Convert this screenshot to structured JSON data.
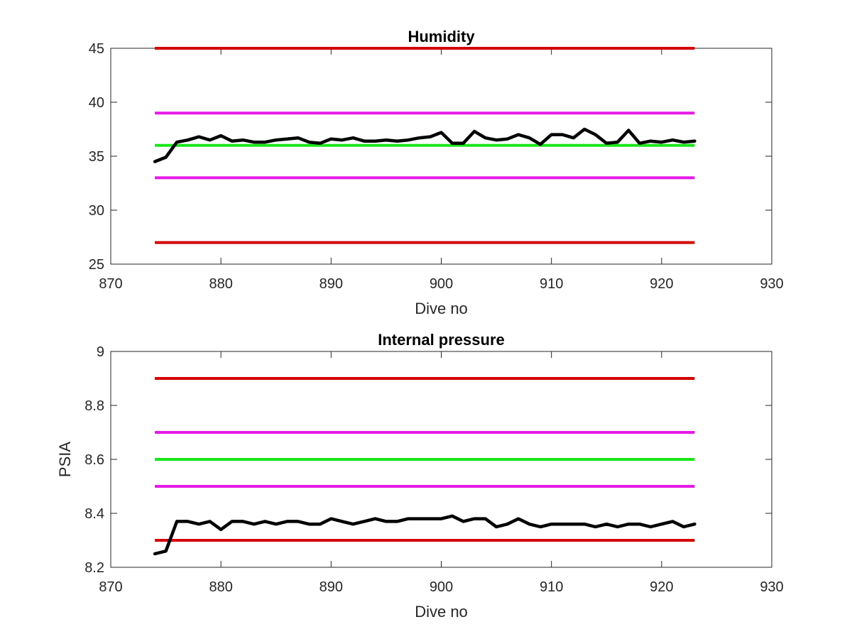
{
  "chart_data": [
    {
      "type": "line",
      "title": "Humidity",
      "xlabel": "Dive no",
      "ylabel": "",
      "xlim": [
        870,
        930
      ],
      "ylim": [
        25,
        45
      ],
      "xticks": [
        870,
        880,
        890,
        900,
        910,
        920,
        930
      ],
      "yticks": [
        25,
        30,
        35,
        40,
        45
      ],
      "grid": false,
      "reference_lines": [
        {
          "y": 45,
          "x": [
            874,
            923
          ],
          "color": "#d40000"
        },
        {
          "y": 39,
          "x": [
            874,
            923
          ],
          "color": "#e619e6"
        },
        {
          "y": 36,
          "x": [
            874,
            923
          ],
          "color": "#19e619"
        },
        {
          "y": 33,
          "x": [
            874,
            923
          ],
          "color": "#e619e6"
        },
        {
          "y": 27,
          "x": [
            874,
            923
          ],
          "color": "#d40000"
        }
      ],
      "series": [
        {
          "color": "#000000",
          "x": [
            874,
            875,
            876,
            877,
            878,
            879,
            880,
            881,
            882,
            883,
            884,
            885,
            886,
            887,
            888,
            889,
            890,
            891,
            892,
            893,
            894,
            895,
            896,
            897,
            898,
            899,
            900,
            901,
            902,
            903,
            904,
            905,
            906,
            907,
            908,
            909,
            910,
            911,
            912,
            913,
            914,
            915,
            916,
            917,
            918,
            919,
            920,
            921,
            922,
            923
          ],
          "values": [
            34.5,
            34.9,
            36.3,
            36.5,
            36.8,
            36.5,
            36.9,
            36.4,
            36.5,
            36.3,
            36.3,
            36.5,
            36.6,
            36.7,
            36.3,
            36.2,
            36.6,
            36.5,
            36.7,
            36.4,
            36.4,
            36.5,
            36.4,
            36.5,
            36.7,
            36.8,
            37.2,
            36.2,
            36.2,
            37.3,
            36.7,
            36.5,
            36.6,
            37.0,
            36.7,
            36.1,
            37.0,
            37.0,
            36.7,
            37.5,
            37.0,
            36.2,
            36.3,
            37.4,
            36.2,
            36.4,
            36.3,
            36.5,
            36.3,
            36.4
          ]
        }
      ]
    },
    {
      "type": "line",
      "title": "Internal pressure",
      "xlabel": "Dive no",
      "ylabel": "PSIA",
      "xlim": [
        870,
        930
      ],
      "ylim": [
        8.2,
        9.0
      ],
      "xticks": [
        870,
        880,
        890,
        900,
        910,
        920,
        930
      ],
      "yticks": [
        8.2,
        8.4,
        8.6,
        8.8,
        9.0
      ],
      "ytick_labels": [
        "8.2",
        "8.4",
        "8.6",
        "8.8",
        "9"
      ],
      "grid": false,
      "reference_lines": [
        {
          "y": 8.9,
          "x": [
            874,
            923
          ],
          "color": "#d40000"
        },
        {
          "y": 8.7,
          "x": [
            874,
            923
          ],
          "color": "#e619e6"
        },
        {
          "y": 8.6,
          "x": [
            874,
            923
          ],
          "color": "#19e619"
        },
        {
          "y": 8.5,
          "x": [
            874,
            923
          ],
          "color": "#e619e6"
        },
        {
          "y": 8.3,
          "x": [
            874,
            923
          ],
          "color": "#d40000"
        }
      ],
      "series": [
        {
          "color": "#000000",
          "x": [
            874,
            875,
            876,
            877,
            878,
            879,
            880,
            881,
            882,
            883,
            884,
            885,
            886,
            887,
            888,
            889,
            890,
            891,
            892,
            893,
            894,
            895,
            896,
            897,
            898,
            899,
            900,
            901,
            902,
            903,
            904,
            905,
            906,
            907,
            908,
            909,
            910,
            911,
            912,
            913,
            914,
            915,
            916,
            917,
            918,
            919,
            920,
            921,
            922,
            923
          ],
          "values": [
            8.25,
            8.26,
            8.37,
            8.37,
            8.36,
            8.37,
            8.34,
            8.37,
            8.37,
            8.36,
            8.37,
            8.36,
            8.37,
            8.37,
            8.36,
            8.36,
            8.38,
            8.37,
            8.36,
            8.37,
            8.38,
            8.37,
            8.37,
            8.38,
            8.38,
            8.38,
            8.38,
            8.39,
            8.37,
            8.38,
            8.38,
            8.35,
            8.36,
            8.38,
            8.36,
            8.35,
            8.36,
            8.36,
            8.36,
            8.36,
            8.35,
            8.36,
            8.35,
            8.36,
            8.36,
            8.35,
            8.36,
            8.37,
            8.35,
            8.36
          ]
        }
      ]
    }
  ]
}
